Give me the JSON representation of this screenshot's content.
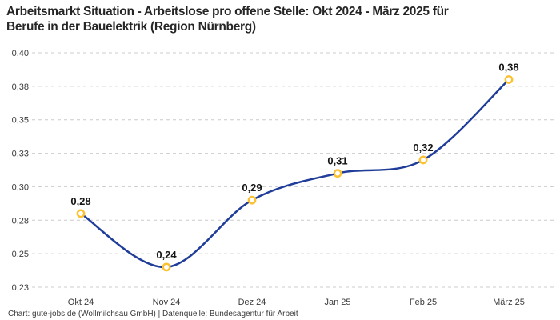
{
  "header": {
    "title_line1": "Arbeitsmarkt Situation - Arbeitslose pro offene Stelle: Okt 2024 - März 2025 für",
    "title_line2": "Berufe in der Bauelektrik (Region Nürnberg)"
  },
  "footer": {
    "credit": "Chart: gute-jobs.de (Wollmilchsau GmbH) | Datenquelle: Bundesagentur für Arbeit"
  },
  "colors": {
    "line": "#1f3d99",
    "marker_ring": "#fcc12f",
    "marker_fill": "#ffffff",
    "grid": "#cccccc",
    "title_text": "#262626",
    "axis_text": "#3c3c3c",
    "point_label_text": "#141414"
  },
  "chart_data": {
    "type": "line",
    "title": "Arbeitsmarkt Situation - Arbeitslose pro offene Stelle: Okt 2024 - März 2025 für Berufe in der Bauelektrik (Region Nürnberg)",
    "xlabel": "",
    "ylabel": "",
    "categories": [
      "Okt 24",
      "Nov 24",
      "Dez 24",
      "Jan 25",
      "Feb 25",
      "März 25"
    ],
    "values": [
      0.28,
      0.24,
      0.29,
      0.31,
      0.32,
      0.38
    ],
    "point_labels": [
      "0,28",
      "0,24",
      "0,29",
      "0,31",
      "0,32",
      "0,38"
    ],
    "y_ticks": [
      {
        "v": 0.4,
        "label": "0,40"
      },
      {
        "v": 0.375,
        "label": "0,38"
      },
      {
        "v": 0.35,
        "label": "0,35"
      },
      {
        "v": 0.325,
        "label": "0,33"
      },
      {
        "v": 0.3,
        "label": "0,30"
      },
      {
        "v": 0.275,
        "label": "0,28"
      },
      {
        "v": 0.25,
        "label": "0,25"
      },
      {
        "v": 0.225,
        "label": "0,23"
      }
    ],
    "ylim": [
      0.225,
      0.4
    ],
    "grid": "horizontal-dashed",
    "legend": "none",
    "smooth": true
  }
}
